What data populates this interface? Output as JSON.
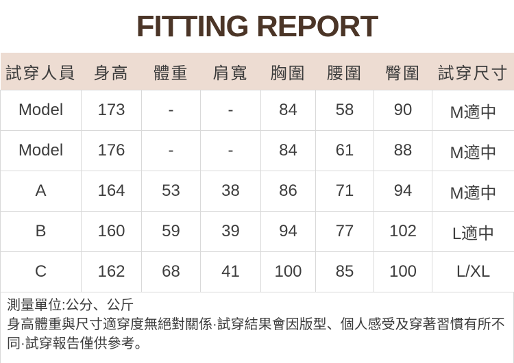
{
  "title": "FITTING REPORT",
  "colors": {
    "title_text": "#4b3527",
    "header_background": "#eddcd2",
    "table_border": "#d9d9d9",
    "body_text": "#3e3e3e"
  },
  "table": {
    "headers": [
      "試穿人員",
      "身高",
      "體重",
      "肩寬",
      "胸圍",
      "腰圍",
      "臀圍",
      "試穿尺寸"
    ],
    "rows": [
      [
        "Model",
        "173",
        "-",
        "-",
        "84",
        "58",
        "90",
        "M適中"
      ],
      [
        "Model",
        "176",
        "-",
        "-",
        "84",
        "61",
        "88",
        "M適中"
      ],
      [
        "A",
        "164",
        "53",
        "38",
        "86",
        "71",
        "94",
        "M適中"
      ],
      [
        "B",
        "160",
        "59",
        "39",
        "94",
        "77",
        "102",
        "L適中"
      ],
      [
        "C",
        "162",
        "68",
        "41",
        "100",
        "85",
        "100",
        "L/XL"
      ]
    ]
  },
  "notes": {
    "unit_line": "測量單位:公分、公斤",
    "disclaimer": "身高體重與尺寸適穿度無絕對關係·試穿結果會因版型、個人感受及穿著習慣有所不同·試穿報告僅供參考。"
  }
}
